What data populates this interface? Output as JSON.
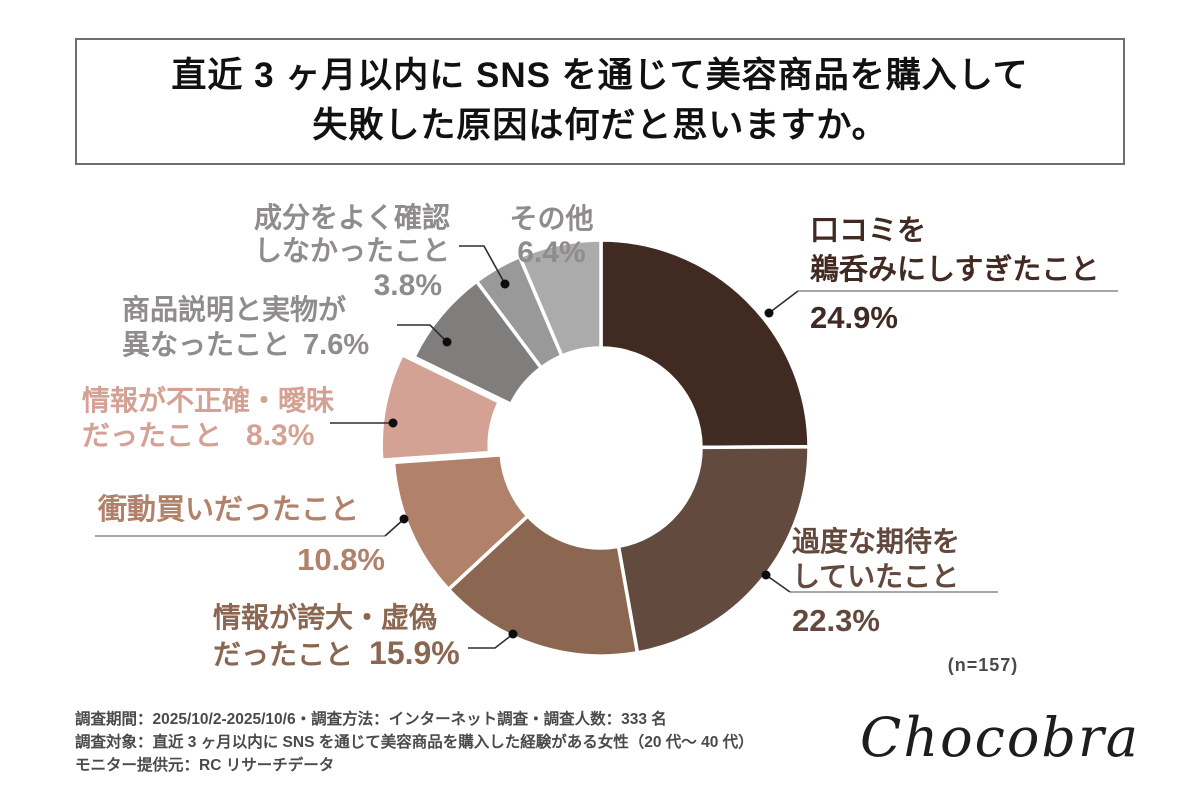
{
  "title": {
    "line1": "直近 3 ヶ月以内に SNS を通じて美容商品を購入して",
    "line2": "失敗した原因は何だと思いますか。"
  },
  "chart_data": {
    "type": "pie",
    "subtype": "donut",
    "title": "直近3ヶ月以内にSNSを通じて美容商品を購入して失敗した原因は何だと思いますか。",
    "n_label": "(n=157)",
    "start_at_top_clockwise": true,
    "exploded_index": 4,
    "legend_position": "none",
    "categories": [
      "口コミを鵜呑みにしすぎたこと",
      "過度な期待をしていたこと",
      "情報が誇大・虚偽だったこと",
      "衝動買いだったこと",
      "情報が不正確・曖昧だったこと",
      "商品説明と実物が異なったこと",
      "成分をよく確認しなかったこと",
      "その他"
    ],
    "values": [
      24.9,
      22.3,
      15.9,
      10.8,
      8.3,
      7.6,
      3.8,
      6.4
    ],
    "segments": [
      {
        "label": "口コミを鵜呑みにしすぎたこと",
        "label_lines": [
          "口コミを",
          "鵜呑みにしすぎたこと"
        ],
        "value": 24.9,
        "pct_label": "24.9%",
        "color": "#412a21",
        "text_color": "#412a21"
      },
      {
        "label": "過度な期待をしていたこと",
        "label_lines": [
          "過度な期待を",
          "していたこと"
        ],
        "value": 22.3,
        "pct_label": "22.3%",
        "color": "#634a3e",
        "text_color": "#63493d"
      },
      {
        "label": "情報が誇大・虚偽だったこと",
        "label_lines": [
          "情報が誇大・虚偽",
          "だったこと"
        ],
        "value": 15.9,
        "pct_label": "15.9%",
        "color": "#8b6752",
        "text_color": "#8b6752"
      },
      {
        "label": "衝動買いだったこと",
        "label_lines": [
          "衝動買いだったこと"
        ],
        "value": 10.8,
        "pct_label": "10.8%",
        "color": "#b1816a",
        "text_color": "#b1816a"
      },
      {
        "label": "情報が不正確・曖昧だったこと",
        "label_lines": [
          "情報が不正確・曖昧",
          "だったこと"
        ],
        "value": 8.3,
        "pct_label": "8.3%",
        "color": "#d4a294",
        "text_color": "#d4a294"
      },
      {
        "label": "商品説明と実物が異なったこと",
        "label_lines": [
          "商品説明と実物が",
          "異なったこと"
        ],
        "value": 7.6,
        "pct_label": "7.6%",
        "color": "#807d7d",
        "text_color": "#8e8c8c"
      },
      {
        "label": "成分をよく確認しなかったこと",
        "label_lines": [
          "成分をよく確認",
          "しなかったこと"
        ],
        "value": 3.8,
        "pct_label": "3.8%",
        "color": "#9a9999",
        "text_color": "#8e8c8c"
      },
      {
        "label": "その他",
        "label_lines": [
          "その他"
        ],
        "value": 6.4,
        "pct_label": "6.4%",
        "color": "#acabab",
        "text_color": "#8e8c8c"
      }
    ]
  },
  "footer": {
    "lines": [
      "調査期間：2025/10/2-2025/10/6・調査方法：インターネット調査・調査人数：333 名",
      "調査対象：直近 3 ヶ月以内に SNS を通じて美容商品を購入した経験がある女性（20 代～ 40 代）",
      "モニター提供元：RC リサーチデータ"
    ]
  },
  "brand": {
    "logo_text": "Chocobra"
  }
}
